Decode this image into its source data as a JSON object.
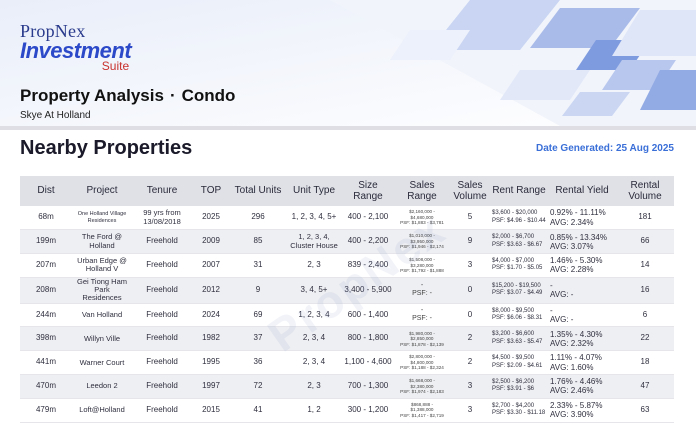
{
  "logo": {
    "brand": "PropNex",
    "product": "Investment",
    "suite": "Suite"
  },
  "header": {
    "title_left": "Property Analysis",
    "separator": "·",
    "title_right": "Condo",
    "subtitle": "Skye At Holland"
  },
  "section": {
    "title": "Nearby Properties",
    "date_generated": "Date Generated: 25 Aug 2025"
  },
  "watermark": "PropNex",
  "table": {
    "columns": [
      "Dist",
      "Project",
      "Tenure",
      "TOP",
      "Total Units",
      "Unit Type",
      "Size Range",
      "Sales Range",
      "Sales Volume",
      "Rent Range",
      "Rental Yield",
      "Rental Volume"
    ],
    "rows": [
      {
        "dist": "68m",
        "project": "One Holland Village Residences",
        "project_small": true,
        "tenure": "99 yrs from 13/08/2018",
        "top": "2025",
        "units": "296",
        "unit_type": "1, 2, 3, 4, 5+",
        "size": "400 - 2,100",
        "sales": [
          "$2,160,000 -",
          "$4,680,000",
          "PSF: $1,883 - $3,781"
        ],
        "sales_volume": "5",
        "rent": [
          "$3,600 - $20,000",
          "PSF: $4.96 - $10.44"
        ],
        "yield": [
          "0.92% - 11.11%",
          "AVG: 2.34%"
        ],
        "rental_volume": "181"
      },
      {
        "dist": "199m",
        "project": "The Ford @ Holland",
        "tenure": "Freehold",
        "top": "2009",
        "units": "85",
        "unit_type": "1, 2, 3, 4, Cluster House",
        "size": "400 - 2,200",
        "sales": [
          "$1,010,000 -",
          "$3,950,000",
          "PSF: $1,946 - $2,174"
        ],
        "sales_volume": "9",
        "rent": [
          "$2,000 - $6,700",
          "PSF: $3.63 - $6.67"
        ],
        "yield": [
          "0.85% - 13.34%",
          "AVG: 3.07%"
        ],
        "rental_volume": "66"
      },
      {
        "dist": "207m",
        "project": "Urban Edge @ Holland V",
        "tenure": "Freehold",
        "top": "2007",
        "units": "31",
        "unit_type": "2, 3",
        "size": "839 - 2,400",
        "sales": [
          "$1,508,000 -",
          "$3,280,000",
          "PSF: $1,792 - $1,888"
        ],
        "sales_volume": "3",
        "rent": [
          "$4,000 - $7,000",
          "PSF: $1.70 - $5.05"
        ],
        "yield": [
          "1.46% - 5.30%",
          "AVG: 2.28%"
        ],
        "rental_volume": "14"
      },
      {
        "dist": "208m",
        "project": "Gei Tiong Ham Park Residences",
        "tenure": "Freehold",
        "top": "2012",
        "units": "9",
        "unit_type": "3, 4, 5+",
        "size": "3,400 - 5,900",
        "sales": [
          "-",
          "PSF: -"
        ],
        "sales_volume": "0",
        "rent": [
          "$15,200 - $19,500",
          "PSF: $3.07 - $4.49"
        ],
        "yield": [
          "-",
          "AVG: -"
        ],
        "rental_volume": "16"
      },
      {
        "dist": "244m",
        "project": "Van Holland",
        "tenure": "Freehold",
        "top": "2024",
        "units": "69",
        "unit_type": "1, 2, 3, 4",
        "size": "600 - 1,400",
        "sales": [
          "-",
          "PSF: -"
        ],
        "sales_volume": "0",
        "rent": [
          "$8,000 - $9,500",
          "PSF: $6.06 - $8.31"
        ],
        "yield": [
          "-",
          "AVG: -"
        ],
        "rental_volume": "6"
      },
      {
        "dist": "398m",
        "project": "Willyn Ville",
        "tenure": "Freehold",
        "top": "1982",
        "units": "37",
        "unit_type": "2, 3, 4",
        "size": "800 - 1,800",
        "sales": [
          "$1,980,000 -",
          "$2,850,000",
          "PSF: $1,878 - $2,139"
        ],
        "sales_volume": "2",
        "rent": [
          "$3,200 - $6,600",
          "PSF: $3.63 - $5.47"
        ],
        "yield": [
          "1.35% - 4.30%",
          "AVG: 2.32%"
        ],
        "rental_volume": "22"
      },
      {
        "dist": "441m",
        "project": "Warner Court",
        "tenure": "Freehold",
        "top": "1995",
        "units": "36",
        "unit_type": "2, 3, 4",
        "size": "1,100 - 4,600",
        "sales": [
          "$2,800,000 -",
          "$4,800,000",
          "PSF: $1,188 - $2,324"
        ],
        "sales_volume": "2",
        "rent": [
          "$4,500 - $9,500",
          "PSF: $2.09 - $4.61"
        ],
        "yield": [
          "1.11% - 4.07%",
          "AVG: 1.60%"
        ],
        "rental_volume": "18"
      },
      {
        "dist": "470m",
        "project": "Leedon 2",
        "tenure": "Freehold",
        "top": "1997",
        "units": "72",
        "unit_type": "2, 3",
        "size": "700 - 1,300",
        "sales": [
          "$1,668,000 -",
          "$2,380,000",
          "PSF: $1,974 - $2,183"
        ],
        "sales_volume": "3",
        "rent": [
          "$2,500 - $6,200",
          "PSF: $3.91 - $6"
        ],
        "yield": [
          "1.76% - 4.46%",
          "AVG: 2.46%"
        ],
        "rental_volume": "47"
      },
      {
        "dist": "479m",
        "project": "Loft@Holland",
        "tenure": "Freehold",
        "top": "2015",
        "units": "41",
        "unit_type": "1, 2",
        "size": "300 - 1,200",
        "sales": [
          "$868,888 -",
          "$1,388,000",
          "PSF: $1,417 - $2,719"
        ],
        "sales_volume": "3",
        "rent": [
          "$2,700 - $4,200",
          "PSF: $3.30 - $11.18"
        ],
        "yield": [
          "2.33% - 5.87%",
          "AVG: 3.90%"
        ],
        "rental_volume": "63"
      }
    ]
  },
  "colors": {
    "brand_navy": "#2a3a8c",
    "brand_blue": "#2b49c8",
    "brand_red": "#c8322d",
    "date_blue": "#3a6fd8",
    "header_gray": "#dfe1e7"
  }
}
